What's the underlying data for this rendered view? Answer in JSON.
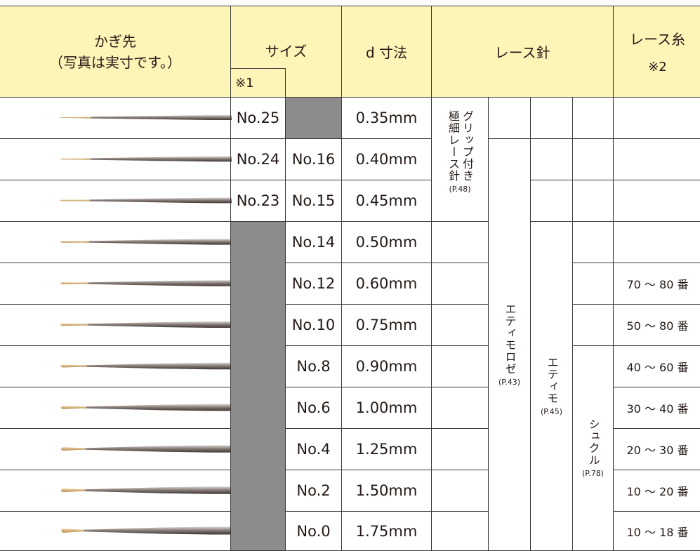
{
  "header": {
    "hook": [
      "かぎ先",
      "（写真は実寸です。）"
    ],
    "size": "サイズ",
    "size_note": "※1",
    "d": "d 寸法",
    "lace_needle": "レース針",
    "lace_thread": "レース糸",
    "thread_note": "※2"
  },
  "rows": [
    {
      "size_a": "No.25",
      "d": "0.35mm"
    },
    {
      "size_a": "No.24",
      "size_b": "No.16",
      "d": "0.40mm"
    },
    {
      "size_a": "No.23",
      "size_b": "No.15",
      "d": "0.45mm"
    },
    {
      "size_b": "No.14",
      "d": "0.50mm"
    },
    {
      "size_b": "No.12",
      "d": "0.60mm",
      "thread": "70 ～ 80 番"
    },
    {
      "size_b": "No.10",
      "d": "0.75mm",
      "thread": "50 ～ 80 番"
    },
    {
      "size_b": "No.8",
      "d": "0.90mm",
      "thread": "40 ～ 60 番"
    },
    {
      "size_b": "No.6",
      "d": "1.00mm",
      "thread": "30 ～ 40 番"
    },
    {
      "size_b": "No.4",
      "d": "1.25mm",
      "thread": "20 ～ 30 番"
    },
    {
      "size_b": "No.2",
      "d": "1.50mm",
      "thread": "10 ～ 20 番"
    },
    {
      "size_b": "No.0",
      "d": "1.75mm",
      "thread": "10 ～ 18 番"
    }
  ],
  "needles": [
    {
      "name": [
        "グリップ付き",
        "極細レース針"
      ],
      "page": "(P.48)"
    },
    {
      "name": [
        "エティモロゼ"
      ],
      "page": "(P.43)"
    },
    {
      "name": [
        "エティモ"
      ],
      "page": "(P.45)"
    },
    {
      "name": [
        "シュクル"
      ],
      "page": "(P.78)"
    }
  ]
}
